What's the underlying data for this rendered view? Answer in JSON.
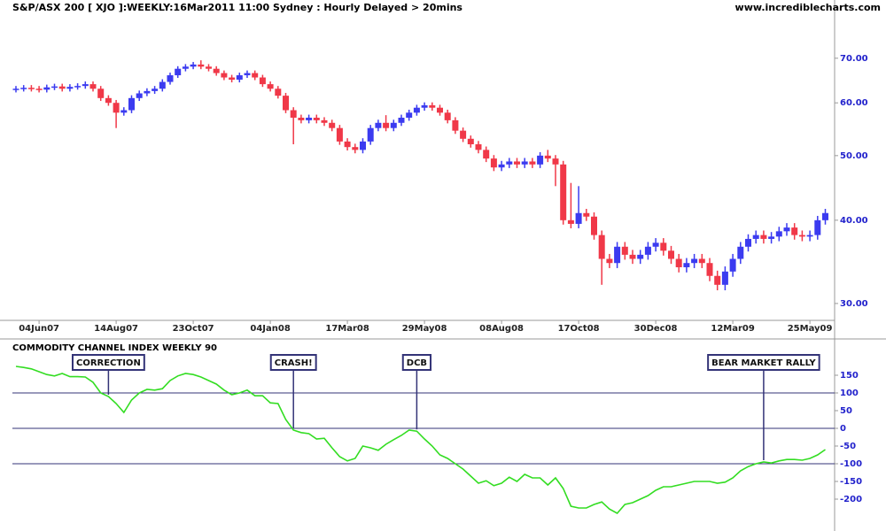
{
  "header": {
    "title": "S&P/ASX 200 [ XJO ]:WEEKLY:16Mar2011 11:00 Sydney : Hourly Delayed > 20mins",
    "site": "www.incrediblecharts.com"
  },
  "chart_data": [
    {
      "type": "candlestick",
      "log_scale": true,
      "up_color": "#3b3bf0",
      "down_color": "#f03848",
      "ylim": [
        28.3,
        85.6
      ],
      "yticks": [
        {
          "value": 30,
          "label": "30.00"
        },
        {
          "value": 40,
          "label": "40.00"
        },
        {
          "value": 50,
          "label": "50.00"
        },
        {
          "value": 60,
          "label": "60.00"
        },
        {
          "value": 70,
          "label": "70.00"
        }
      ],
      "categories": [
        null,
        null,
        null,
        "04Jun07",
        null,
        null,
        null,
        null,
        null,
        null,
        null,
        null,
        null,
        "14Aug07",
        null,
        null,
        null,
        null,
        null,
        null,
        null,
        null,
        null,
        "23Oct07",
        null,
        null,
        null,
        null,
        null,
        null,
        null,
        null,
        null,
        "04Jan08",
        null,
        null,
        null,
        null,
        null,
        null,
        null,
        null,
        null,
        "17Mar08",
        null,
        null,
        null,
        null,
        null,
        null,
        null,
        null,
        null,
        "29May08",
        null,
        null,
        null,
        null,
        null,
        null,
        null,
        null,
        null,
        "08Aug08",
        null,
        null,
        null,
        null,
        null,
        null,
        null,
        null,
        null,
        "17Oct08",
        null,
        null,
        null,
        null,
        null,
        null,
        null,
        null,
        null,
        "30Dec08",
        null,
        null,
        null,
        null,
        null,
        null,
        null,
        null,
        null,
        "12Mar09",
        null,
        null,
        null,
        null,
        null,
        null,
        null,
        null,
        null,
        "25May09",
        null,
        null
      ],
      "open": [
        62.8,
        63.0,
        63.2,
        63.0,
        62.8,
        63.3,
        63.5,
        63.0,
        63.4,
        63.6,
        64.0,
        63.0,
        61.0,
        60.0,
        58.0,
        58.5,
        61.0,
        62.0,
        62.5,
        63.0,
        64.5,
        66.0,
        67.5,
        68.0,
        68.5,
        68.0,
        67.5,
        66.5,
        65.5,
        65.0,
        66.0,
        66.5,
        65.5,
        64.0,
        63.0,
        61.5,
        58.5,
        57.0,
        56.5,
        57.0,
        56.5,
        56.0,
        55.0,
        52.5,
        51.5,
        51.0,
        52.5,
        55.0,
        56.0,
        55.0,
        56.0,
        57.0,
        58.0,
        59.0,
        59.5,
        59.0,
        58.0,
        56.5,
        54.5,
        53.0,
        52.0,
        51.0,
        49.5,
        48.0,
        48.5,
        49.0,
        48.5,
        49.0,
        48.5,
        50.0,
        49.5,
        48.5,
        40.0,
        39.5,
        41.0,
        40.5,
        38.0,
        35.0,
        34.5,
        36.5,
        35.5,
        35.0,
        35.5,
        36.5,
        37.0,
        36.0,
        35.0,
        34.0,
        34.5,
        35.0,
        34.5,
        33.0,
        32.0,
        33.5,
        35.0,
        36.5,
        37.5,
        38.0,
        37.5,
        37.8,
        38.5,
        39.0,
        38.0,
        37.8,
        38.0,
        40.0
      ],
      "high": [
        63.6,
        63.8,
        63.8,
        63.6,
        63.9,
        64.1,
        64.1,
        64.0,
        64.2,
        64.6,
        64.6,
        63.6,
        61.6,
        60.6,
        59.1,
        61.6,
        62.6,
        63.1,
        63.6,
        65.1,
        66.6,
        68.1,
        68.6,
        69.1,
        69.5,
        68.6,
        68.1,
        67.1,
        66.1,
        66.6,
        67.1,
        67.1,
        66.1,
        64.6,
        63.6,
        62.1,
        59.1,
        57.6,
        57.6,
        57.6,
        57.1,
        56.6,
        55.6,
        53.1,
        52.1,
        53.1,
        55.6,
        56.6,
        57.5,
        56.6,
        57.6,
        58.6,
        59.6,
        60.1,
        60.1,
        59.6,
        58.6,
        57.1,
        55.1,
        53.6,
        52.6,
        51.6,
        50.1,
        49.1,
        49.6,
        49.6,
        49.6,
        49.6,
        50.6,
        51.0,
        50.1,
        49.1,
        45.5,
        45.0,
        41.6,
        41.1,
        38.6,
        35.6,
        37.1,
        37.1,
        36.1,
        36.1,
        37.1,
        37.6,
        37.6,
        36.6,
        35.6,
        35.1,
        35.6,
        35.6,
        35.1,
        33.6,
        34.1,
        35.6,
        37.1,
        38.1,
        38.6,
        38.6,
        38.4,
        39.1,
        39.6,
        39.6,
        38.6,
        38.6,
        40.6,
        41.6
      ],
      "low": [
        62.2,
        62.4,
        62.4,
        62.2,
        62.2,
        62.7,
        62.4,
        62.4,
        62.8,
        63.0,
        62.4,
        60.4,
        59.4,
        55.0,
        57.4,
        57.9,
        60.4,
        61.4,
        61.9,
        62.4,
        63.9,
        65.4,
        66.9,
        67.4,
        67.4,
        66.9,
        65.9,
        64.9,
        64.4,
        64.4,
        65.4,
        64.9,
        63.4,
        62.4,
        60.9,
        57.9,
        52.0,
        55.9,
        55.9,
        55.9,
        55.4,
        54.4,
        51.9,
        50.9,
        50.4,
        50.4,
        51.9,
        54.4,
        54.4,
        54.4,
        55.4,
        56.4,
        57.4,
        58.4,
        58.4,
        57.4,
        55.9,
        53.9,
        52.4,
        51.4,
        50.4,
        48.9,
        47.4,
        47.4,
        47.9,
        47.9,
        47.9,
        47.9,
        47.9,
        48.9,
        45.0,
        39.4,
        38.9,
        38.9,
        39.9,
        37.4,
        32.0,
        33.9,
        33.9,
        34.9,
        34.4,
        34.4,
        34.9,
        35.9,
        35.4,
        34.4,
        33.4,
        33.4,
        33.9,
        33.9,
        32.4,
        31.4,
        31.4,
        32.9,
        34.4,
        35.9,
        36.9,
        36.9,
        36.9,
        37.2,
        37.9,
        37.4,
        37.2,
        37.2,
        37.4,
        39.4
      ],
      "close": [
        63.0,
        63.2,
        63.0,
        62.8,
        63.3,
        63.5,
        63.0,
        63.4,
        63.6,
        64.0,
        63.0,
        61.0,
        60.0,
        58.0,
        58.5,
        61.0,
        62.0,
        62.5,
        63.0,
        64.5,
        66.0,
        67.5,
        68.0,
        68.5,
        68.0,
        67.5,
        66.5,
        65.5,
        65.0,
        66.0,
        66.5,
        65.5,
        64.0,
        63.0,
        61.5,
        58.5,
        57.0,
        56.5,
        57.0,
        56.5,
        56.0,
        55.0,
        52.5,
        51.5,
        51.0,
        52.5,
        55.0,
        56.0,
        55.0,
        56.0,
        57.0,
        58.0,
        59.0,
        59.5,
        59.0,
        58.0,
        56.5,
        54.5,
        53.0,
        52.0,
        51.0,
        49.5,
        48.0,
        48.5,
        49.0,
        48.5,
        49.0,
        48.5,
        50.0,
        49.5,
        48.5,
        40.0,
        39.5,
        41.0,
        40.5,
        38.0,
        35.0,
        34.5,
        36.5,
        35.5,
        35.0,
        35.5,
        36.5,
        37.0,
        36.0,
        35.0,
        34.0,
        34.5,
        35.0,
        34.5,
        33.0,
        32.0,
        33.5,
        35.0,
        36.5,
        37.5,
        38.0,
        37.5,
        37.8,
        38.5,
        39.0,
        38.0,
        37.8,
        38.0,
        40.0,
        41.0
      ]
    },
    {
      "type": "line",
      "title": "COMMODITY CHANNEL INDEX WEEKLY 90",
      "color": "#33dd22",
      "reference_color": "#333377",
      "ylim": [
        -270,
        247.5
      ],
      "yticks": [
        150,
        100,
        50,
        0,
        -50,
        -100,
        -150,
        -200
      ],
      "reference_lines": [
        100,
        0,
        -100
      ],
      "values": [
        175,
        172,
        168,
        160,
        152,
        148,
        155,
        146,
        146,
        145,
        130,
        100,
        90,
        70,
        45,
        80,
        100,
        110,
        108,
        112,
        135,
        148,
        155,
        152,
        145,
        135,
        125,
        108,
        95,
        100,
        108,
        92,
        92,
        72,
        70,
        25,
        -5,
        -12,
        -15,
        -30,
        -28,
        -55,
        -80,
        -92,
        -85,
        -50,
        -55,
        -62,
        -45,
        -32,
        -20,
        -5,
        -8,
        -30,
        -50,
        -75,
        -85,
        -100,
        -115,
        -135,
        -155,
        -148,
        -162,
        -155,
        -138,
        -150,
        -130,
        -140,
        -140,
        -160,
        -140,
        -170,
        -220,
        -225,
        -225,
        -215,
        -208,
        -228,
        -240,
        -215,
        -210,
        -200,
        -190,
        -175,
        -165,
        -165,
        -160,
        -155,
        -150,
        -150,
        -150,
        -155,
        -152,
        -140,
        -120,
        -108,
        -100,
        -95,
        -98,
        -92,
        -88,
        -88,
        -90,
        -85,
        -75,
        -60
      ],
      "annotations": [
        {
          "text": "CORRECTION"
        },
        {
          "text": "CRASH!"
        },
        {
          "text": "DCB"
        },
        {
          "text": "BEAR MARKET RALLY"
        }
      ]
    }
  ]
}
